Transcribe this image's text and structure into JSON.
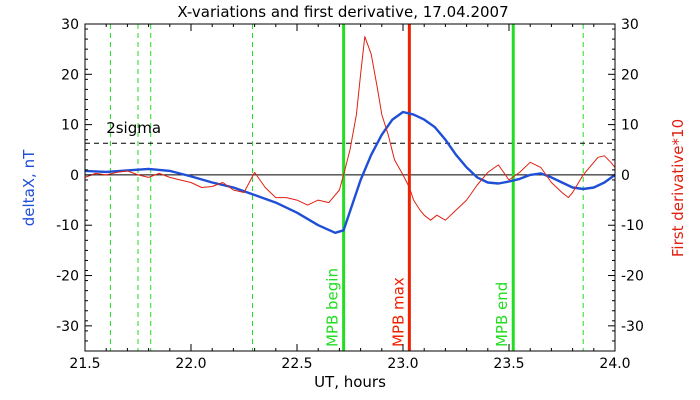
{
  "chart_data": {
    "type": "line",
    "title": "X-variations and first derivative, 17.04.2007",
    "xlabel": "UT, hours",
    "ylabel_left": "deltaX, nT",
    "ylabel_right": "First derivative*10",
    "xlim": [
      21.5,
      24.0
    ],
    "ylim": [
      -35,
      30
    ],
    "x_ticks": [
      "21.5",
      "22.0",
      "22.5",
      "23.0",
      "23.5",
      "24.0"
    ],
    "y_ticks": [
      "-30",
      "-20",
      "-10",
      "0",
      "10",
      "20",
      "30"
    ],
    "grid": false,
    "colors": {
      "deltaX": "#1f4fd6",
      "derivative": "#e02010",
      "mpb_boundary": "#22dd22",
      "mpb_max": "#ee2200",
      "dashed_green": "#22dd22",
      "sigma": "#000000",
      "zero": "#000000",
      "left_label": "#1f4fd6",
      "right_label": "#e02010"
    },
    "sigma_level": {
      "y": 6.3,
      "label": "2sigma",
      "label_x": 21.6
    },
    "zero_line": 0,
    "dashed_verticals": [
      21.62,
      21.75,
      21.81,
      22.29,
      23.85
    ],
    "markers": [
      {
        "x": 22.72,
        "label": "MPB begin",
        "kind": "mpb_boundary"
      },
      {
        "x": 23.03,
        "label": "MPB max",
        "kind": "mpb_max"
      },
      {
        "x": 23.52,
        "label": "MPB end",
        "kind": "mpb_boundary"
      }
    ],
    "series": [
      {
        "key": "deltaX",
        "x": [
          21.5,
          21.6,
          21.7,
          21.8,
          21.9,
          22.0,
          22.1,
          22.2,
          22.3,
          22.4,
          22.5,
          22.6,
          22.68,
          22.72,
          22.76,
          22.8,
          22.85,
          22.9,
          22.95,
          23.0,
          23.05,
          23.1,
          23.15,
          23.2,
          23.25,
          23.3,
          23.35,
          23.4,
          23.45,
          23.5,
          23.55,
          23.6,
          23.65,
          23.7,
          23.75,
          23.8,
          23.85,
          23.9,
          23.95,
          24.0
        ],
        "y": [
          0.8,
          0.6,
          0.9,
          1.2,
          0.8,
          -0.3,
          -1.5,
          -2.5,
          -4.0,
          -5.5,
          -7.5,
          -10.0,
          -11.5,
          -11.0,
          -6.0,
          -1.0,
          4.0,
          8.0,
          11.0,
          12.5,
          12.0,
          11.0,
          9.5,
          7.0,
          4.0,
          1.5,
          -0.5,
          -1.5,
          -1.7,
          -1.3,
          -0.8,
          0.0,
          0.3,
          -0.5,
          -1.5,
          -2.5,
          -2.8,
          -2.5,
          -1.5,
          0.0
        ]
      },
      {
        "key": "derivative",
        "x": [
          21.5,
          21.55,
          21.6,
          21.65,
          21.7,
          21.75,
          21.8,
          21.85,
          21.9,
          21.95,
          22.0,
          22.05,
          22.1,
          22.15,
          22.2,
          22.25,
          22.3,
          22.35,
          22.4,
          22.45,
          22.5,
          22.55,
          22.6,
          22.65,
          22.7,
          22.72,
          22.75,
          22.78,
          22.8,
          22.82,
          22.85,
          22.88,
          22.9,
          22.93,
          22.96,
          23.0,
          23.03,
          23.05,
          23.08,
          23.1,
          23.13,
          23.16,
          23.2,
          23.25,
          23.3,
          23.35,
          23.4,
          23.45,
          23.5,
          23.55,
          23.6,
          23.65,
          23.7,
          23.75,
          23.78,
          23.8,
          23.85,
          23.9,
          23.92,
          23.95,
          23.98,
          24.0
        ],
        "y": [
          -0.5,
          0.3,
          0.0,
          0.5,
          0.8,
          0.0,
          -0.5,
          0.3,
          -0.5,
          -1.0,
          -1.5,
          -2.5,
          -2.3,
          -1.5,
          -3.0,
          -3.5,
          0.5,
          -2.5,
          -4.5,
          -4.5,
          -5.0,
          -6.0,
          -5.0,
          -5.5,
          -3.0,
          0.0,
          5.0,
          12.0,
          20.0,
          27.5,
          24.0,
          17.0,
          12.0,
          8.0,
          3.0,
          0.0,
          -2.5,
          -5.0,
          -7.0,
          -8.0,
          -9.0,
          -8.0,
          -9.0,
          -7.0,
          -5.0,
          -2.0,
          0.5,
          2.0,
          -1.0,
          0.5,
          2.5,
          1.5,
          -1.5,
          -3.5,
          -4.5,
          -3.5,
          0.0,
          2.5,
          3.5,
          3.8,
          2.5,
          1.5
        ]
      }
    ]
  }
}
